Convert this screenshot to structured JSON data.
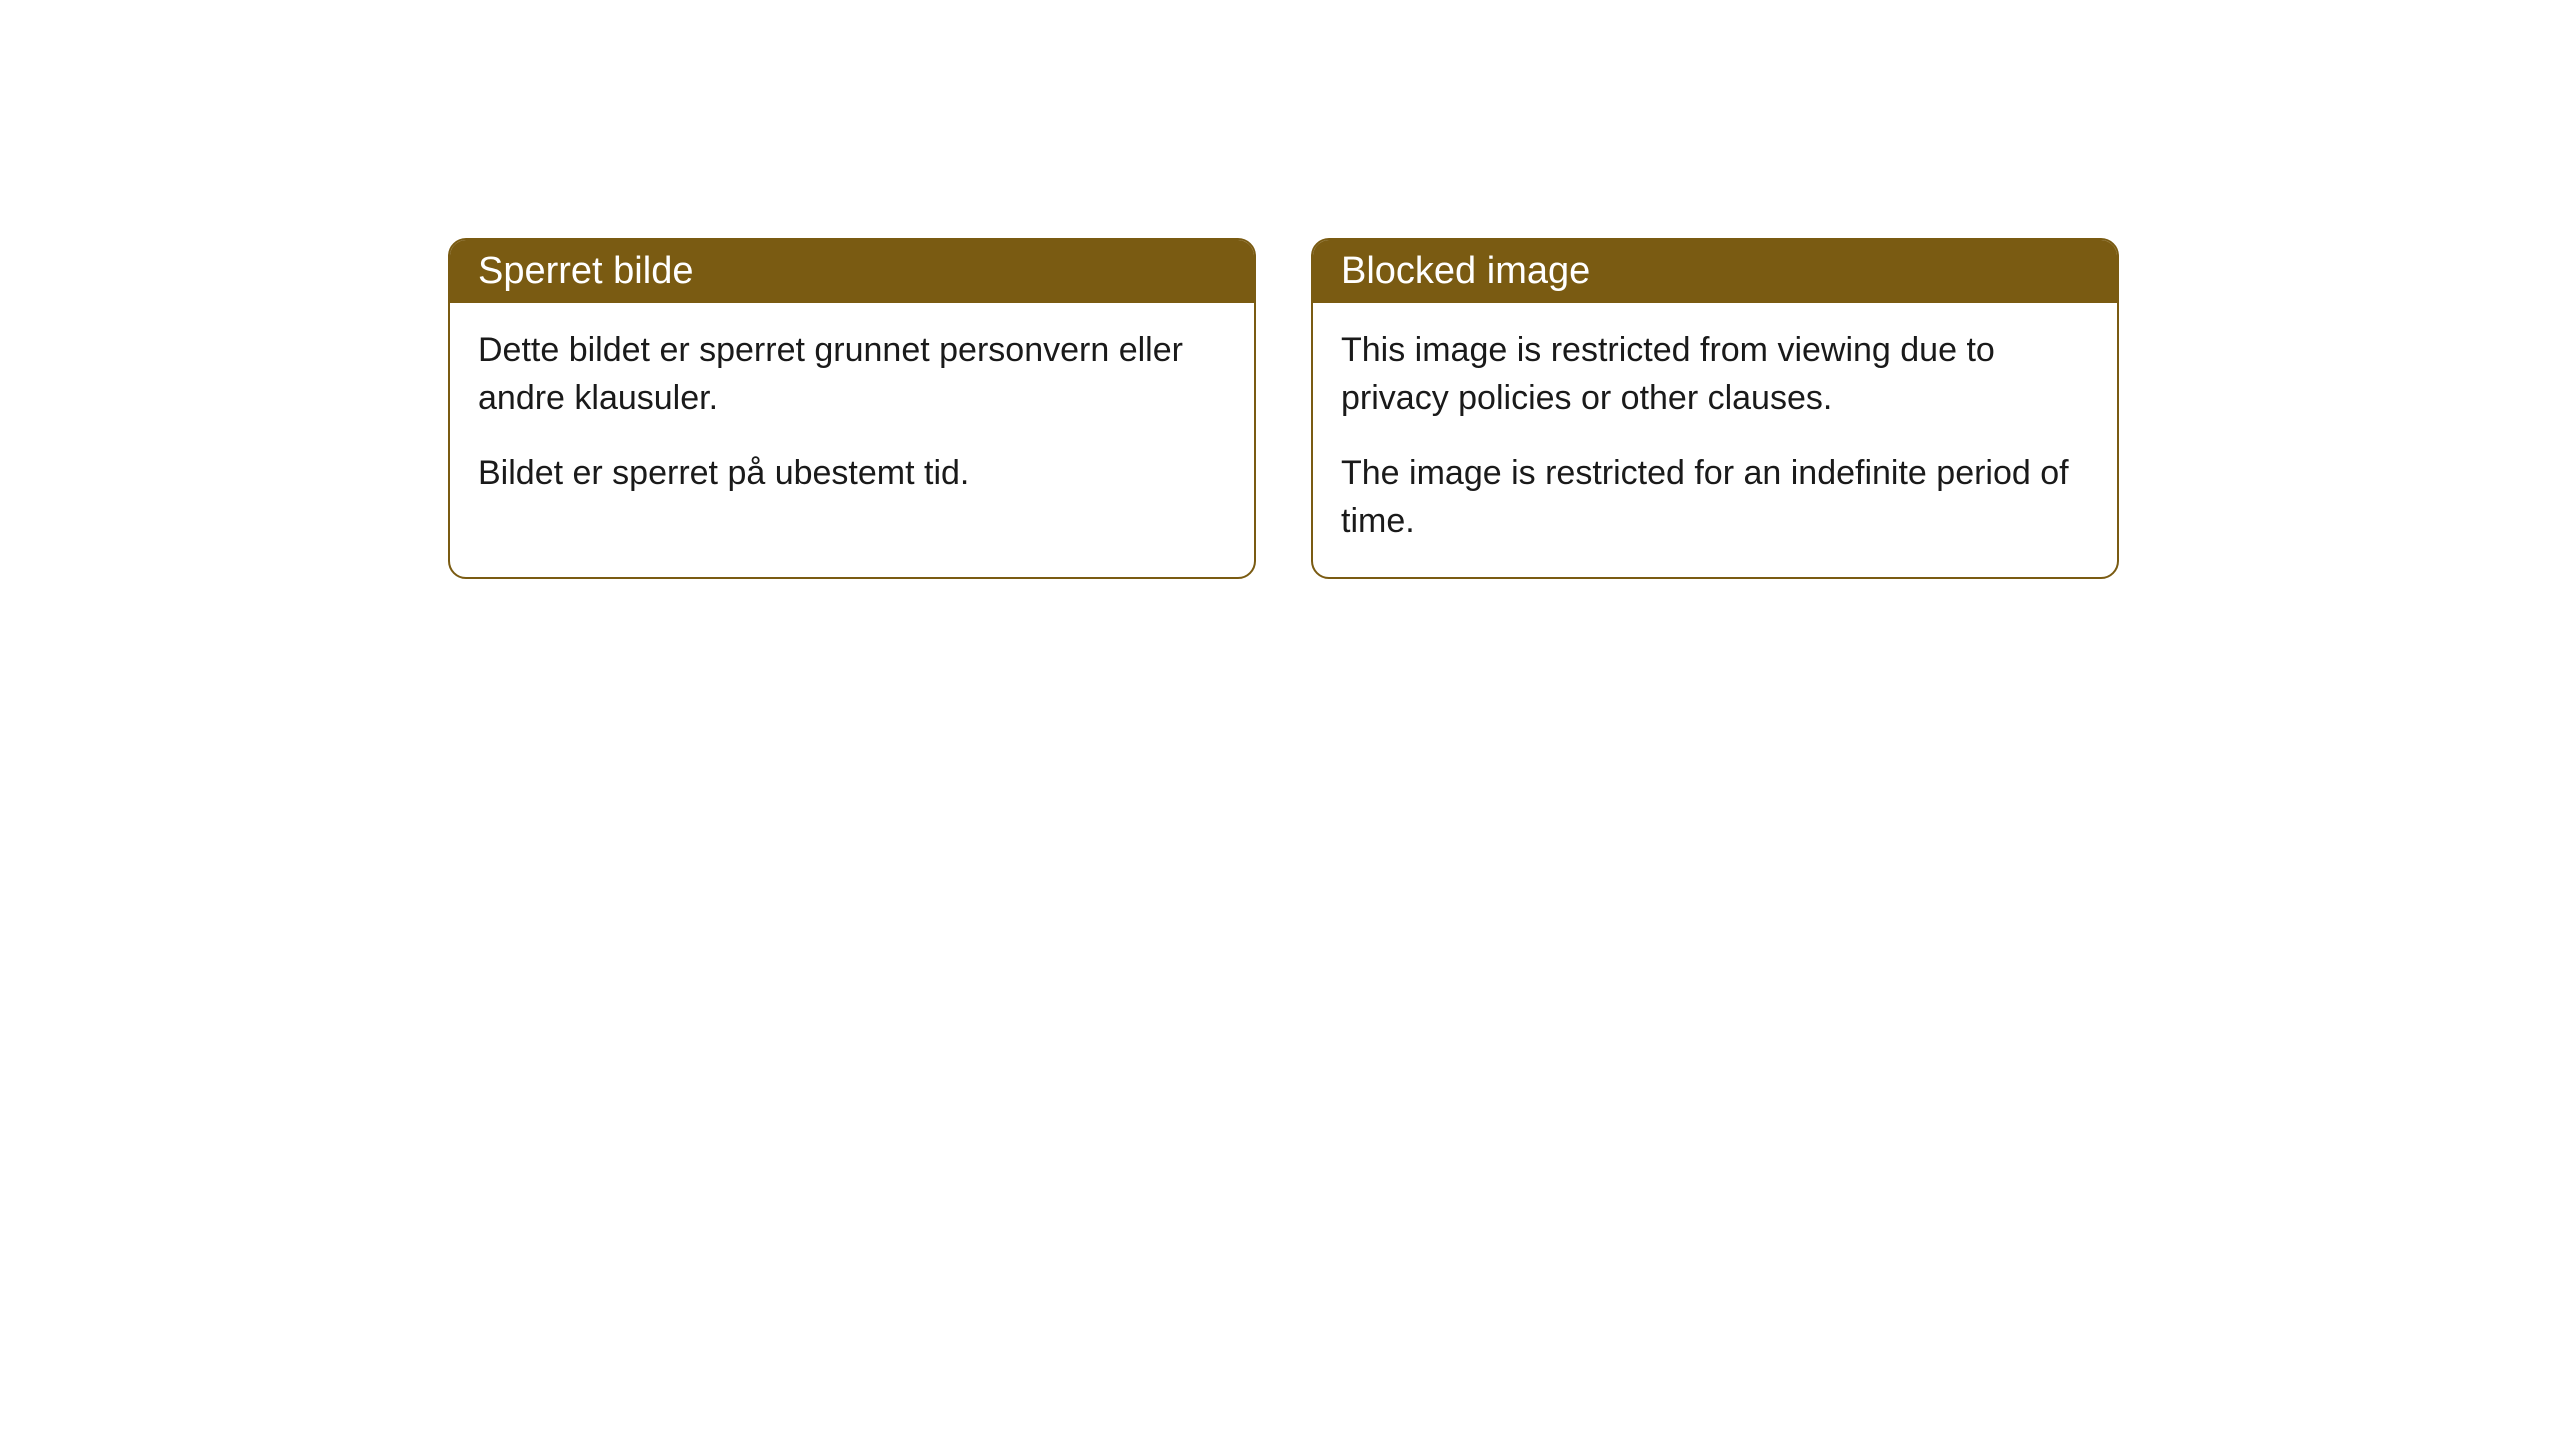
{
  "styling": {
    "header_background_color": "#7a5b12",
    "header_text_color": "#ffffff",
    "border_color": "#7a5b12",
    "body_background_color": "#ffffff",
    "body_text_color": "#1a1a1a",
    "border_radius": 18,
    "header_fontsize": 38,
    "body_fontsize": 34
  },
  "cards": {
    "norwegian": {
      "title": "Sperret bilde",
      "paragraph1": "Dette bildet er sperret grunnet personvern eller andre klausuler.",
      "paragraph2": "Bildet er sperret på ubestemt tid."
    },
    "english": {
      "title": "Blocked image",
      "paragraph1": "This image is restricted from viewing due to privacy policies or other clauses.",
      "paragraph2": "The image is restricted for an indefinite period of time."
    }
  }
}
